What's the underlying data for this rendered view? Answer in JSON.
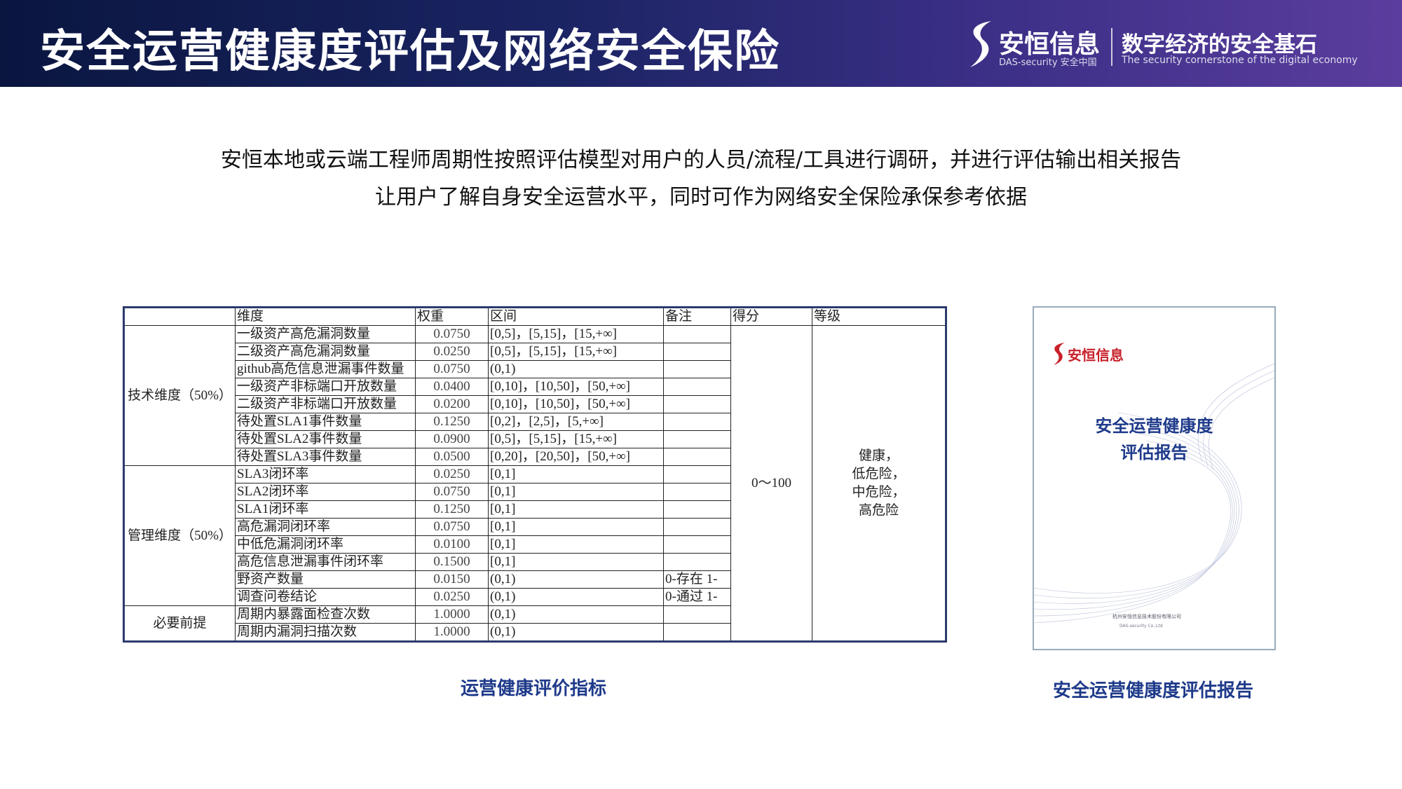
{
  "header": {
    "title": "安全运营健康度评估及网络安全保险",
    "brand": "安恒信息",
    "brand_sub": "DAS-security 安全中国",
    "slogan": "数字经济的安全基石",
    "slogan_en": "The security cornerstone of the digital economy"
  },
  "intro": [
    "安恒本地或云端工程师周期性按照评估模型对用户的人员/流程/工具进行调研，并进行评估输出相关报告",
    "让用户了解自身安全运营水平，同时可作为网络安全保险承保参考依据"
  ],
  "table": {
    "columns": [
      "维度",
      "权重",
      "区间",
      "备注",
      "得分",
      "等级"
    ],
    "groups": [
      {
        "label": "技术维度（50%）",
        "rows": [
          {
            "metric": "一级资产高危漏洞数量",
            "weight": "0.0750",
            "range": "[0,5]，[5,15]，[15,+∞]"
          },
          {
            "metric": "二级资产高危漏洞数量",
            "weight": "0.0250",
            "range": "[0,5]，[5,15]，[15,+∞]"
          },
          {
            "metric": "github高危信息泄漏事件数量",
            "weight": "0.0750",
            "range": "(0,1)"
          },
          {
            "metric": "一级资产非标端口开放数量",
            "weight": "0.0400",
            "range": "[0,10]，[10,50]，[50,+∞]"
          },
          {
            "metric": "二级资产非标端口开放数量",
            "weight": "0.0200",
            "range": "[0,10]，[10,50]，[50,+∞]"
          },
          {
            "metric": "待处置SLA1事件数量",
            "weight": "0.1250",
            "range": "[0,2]，[2,5]，[5,+∞]"
          },
          {
            "metric": "待处置SLA2事件数量",
            "weight": "0.0900",
            "range": "[0,5]，[5,15]，[15,+∞]"
          },
          {
            "metric": "待处置SLA3事件数量",
            "weight": "0.0500",
            "range": "[0,20]，[20,50]，[50,+∞]"
          }
        ]
      },
      {
        "label": "管理维度（50%）",
        "rows": [
          {
            "metric": "SLA3闭环率",
            "weight": "0.0250",
            "range": "[0,1]"
          },
          {
            "metric": "SLA2闭环率",
            "weight": "0.0750",
            "range": "[0,1]"
          },
          {
            "metric": "SLA1闭环率",
            "weight": "0.1250",
            "range": "[0,1]"
          },
          {
            "metric": "高危漏洞闭环率",
            "weight": "0.0750",
            "range": "[0,1]"
          },
          {
            "metric": "中低危漏洞闭环率",
            "weight": "0.0100",
            "range": "[0,1]"
          },
          {
            "metric": "高危信息泄漏事件闭环率",
            "weight": "0.1500",
            "range": "[0,1]"
          },
          {
            "metric": "野资产数量",
            "weight": "0.0150",
            "range": "(0,1)",
            "note": "0-存在 1-"
          },
          {
            "metric": "调查问卷结论",
            "weight": "0.0250",
            "range": "(0,1)",
            "note": "0-通过 1-"
          }
        ]
      },
      {
        "label": "必要前提",
        "rows": [
          {
            "metric": "周期内暴露面检查次数",
            "weight": "1.0000",
            "range": "(0,1)"
          },
          {
            "metric": "周期内漏洞扫描次数",
            "weight": "1.0000",
            "range": "(0,1)"
          }
        ]
      }
    ],
    "score": "0～100",
    "grade": [
      "健康，",
      "低危险，",
      "中危险，",
      "高危险"
    ]
  },
  "captions": {
    "table": "运营健康评价指标",
    "report": "安全运营健康度评估报告"
  },
  "report": {
    "brand": "安恒信息",
    "title": [
      "安全运营健康度",
      "评估报告"
    ],
    "company": "杭州安恒信息技术股份有限公司",
    "company_en": "DAS-security Co.,Ltd"
  }
}
